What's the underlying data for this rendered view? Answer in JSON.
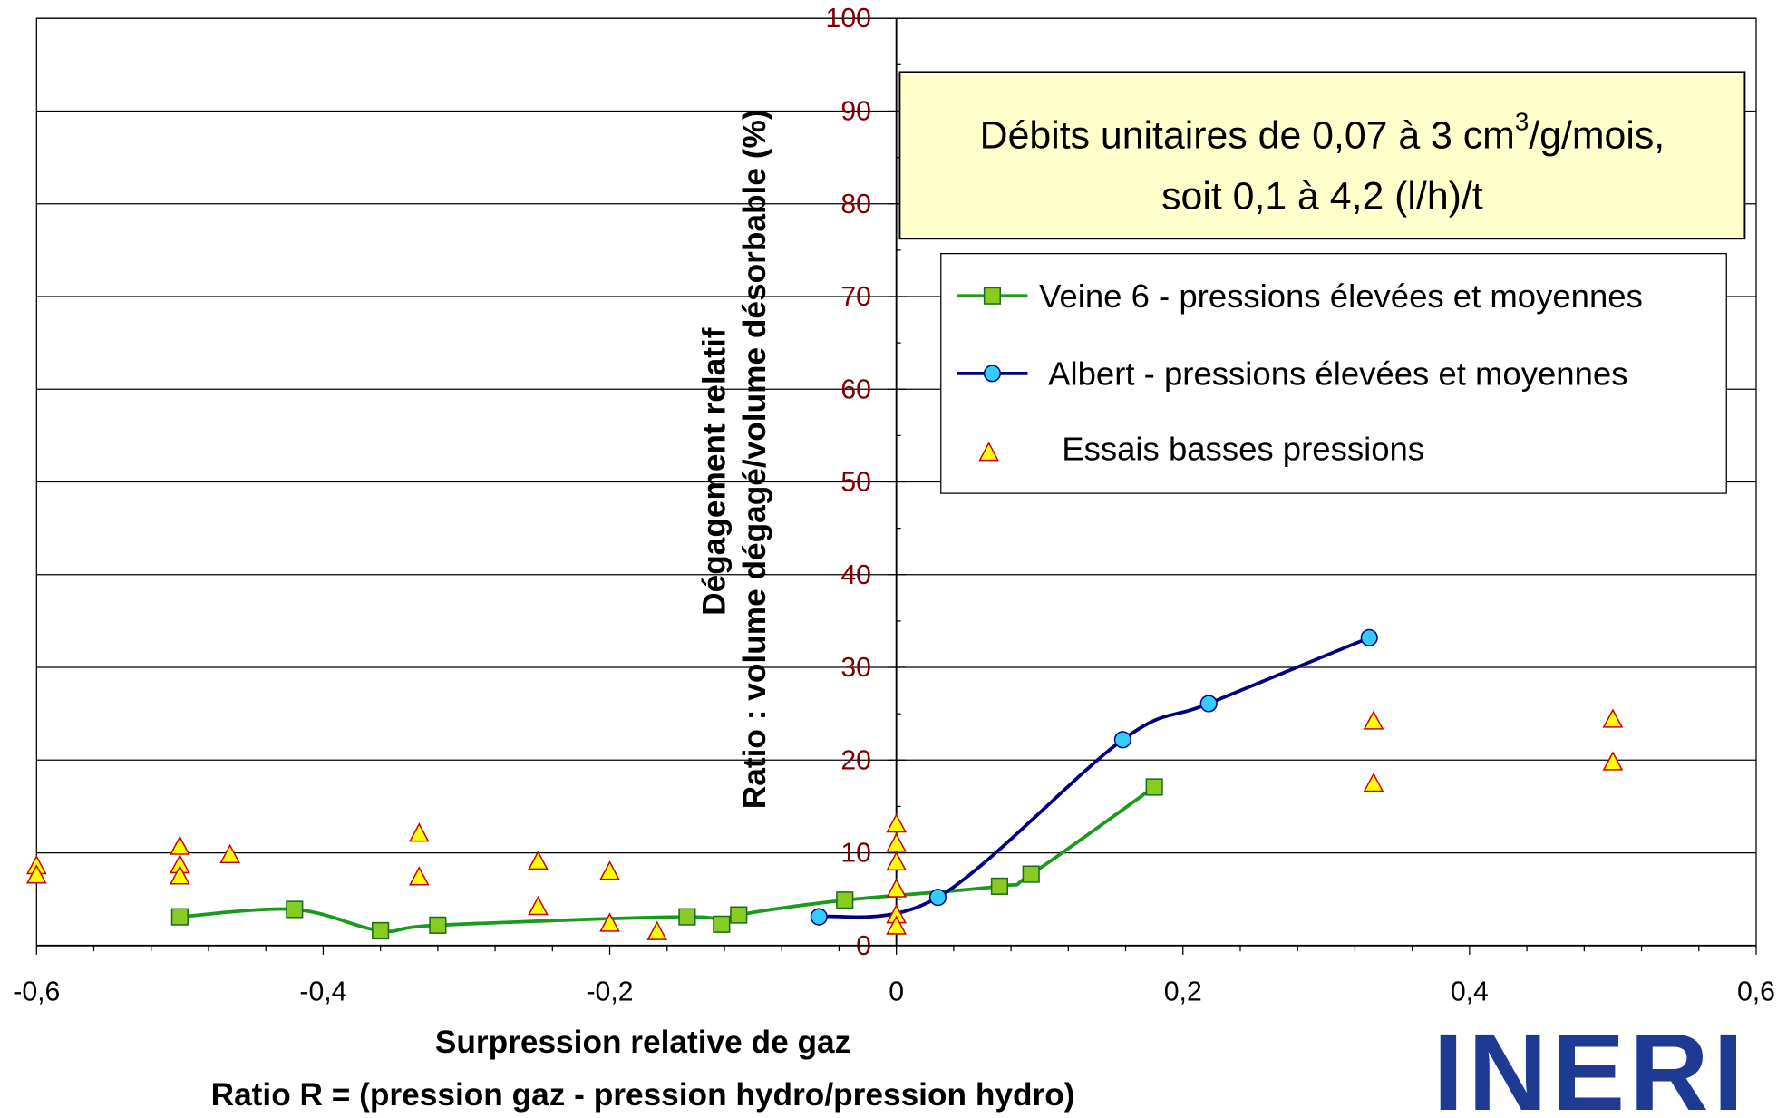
{
  "chart_data": {
    "type": "scatter",
    "xlabel": [
      "Surpression relative de gaz",
      "Ratio R = (pression gaz - pression hydro/pression hydro)"
    ],
    "ylabel": [
      "Dégagement relatif",
      "Ratio : volume dégagé/volume désorbable (%)"
    ],
    "annotation": {
      "line1": "Débits unitaires de 0,07 à 3 cm",
      "sup": "3",
      "line1_end": "/g/mois,",
      "line2": "soit 0,1 à 4,2 (l/h)/t"
    },
    "logo": "INERI",
    "xlim": [
      -0.6,
      0.6
    ],
    "xticks": [
      {
        "value": -0.6,
        "label": "-0,6"
      },
      {
        "value": -0.4,
        "label": "-0,4"
      },
      {
        "value": -0.2,
        "label": "-0,2"
      },
      0,
      {
        "value": 0.2,
        "label": "0,2"
      },
      {
        "value": 0.4,
        "label": "0,4"
      },
      {
        "value": 0.6,
        "label": "0,6"
      }
    ],
    "ylim": [
      0,
      100
    ],
    "yticks": [
      0,
      10,
      20,
      30,
      40,
      50,
      60,
      70,
      80,
      90,
      100
    ],
    "grid": true,
    "series": [
      {
        "name": "Veine 6 - pressions élevées et moyennes",
        "color": "#1a9a1a",
        "marker": "square",
        "marker_color": "#88cc22",
        "line": true,
        "x": [
          -0.5,
          -0.42,
          -0.36,
          -0.32,
          -0.146,
          -0.122,
          -0.11,
          -0.036,
          0.072,
          0.094,
          0.18
        ],
        "values": [
          3.1,
          3.9,
          1.6,
          2.2,
          3.1,
          2.3,
          3.3,
          4.9,
          6.4,
          7.7,
          17.1
        ]
      },
      {
        "name": "Albert - pressions élevées et moyennes",
        "color": "#000080",
        "marker": "circle",
        "marker_color": "#33ccff",
        "line": true,
        "x": [
          -0.054,
          0.029,
          0.158,
          0.218,
          0.33
        ],
        "values": [
          3.1,
          5.2,
          22.2,
          26.1,
          33.2
        ]
      },
      {
        "name": "Essais basses pressions",
        "color": "#cc0000",
        "marker": "triangle",
        "marker_color": "#ffff00",
        "line": false,
        "x": [
          -0.6,
          -0.6,
          -0.5,
          -0.5,
          -0.5,
          -0.465,
          -0.333,
          -0.333,
          -0.25,
          -0.25,
          -0.2,
          -0.2,
          -0.167,
          0,
          0,
          0,
          0,
          0,
          0,
          0.333,
          0.333,
          0.5,
          0.5
        ],
        "values": [
          8.5,
          7.5,
          10.6,
          8.6,
          7.4,
          9.7,
          12,
          7.3,
          9,
          4.1,
          7.9,
          2.3,
          1.4,
          13,
          10.9,
          8.9,
          6,
          3.2,
          2,
          24.1,
          17.4,
          24.3,
          19.7
        ]
      }
    ]
  }
}
